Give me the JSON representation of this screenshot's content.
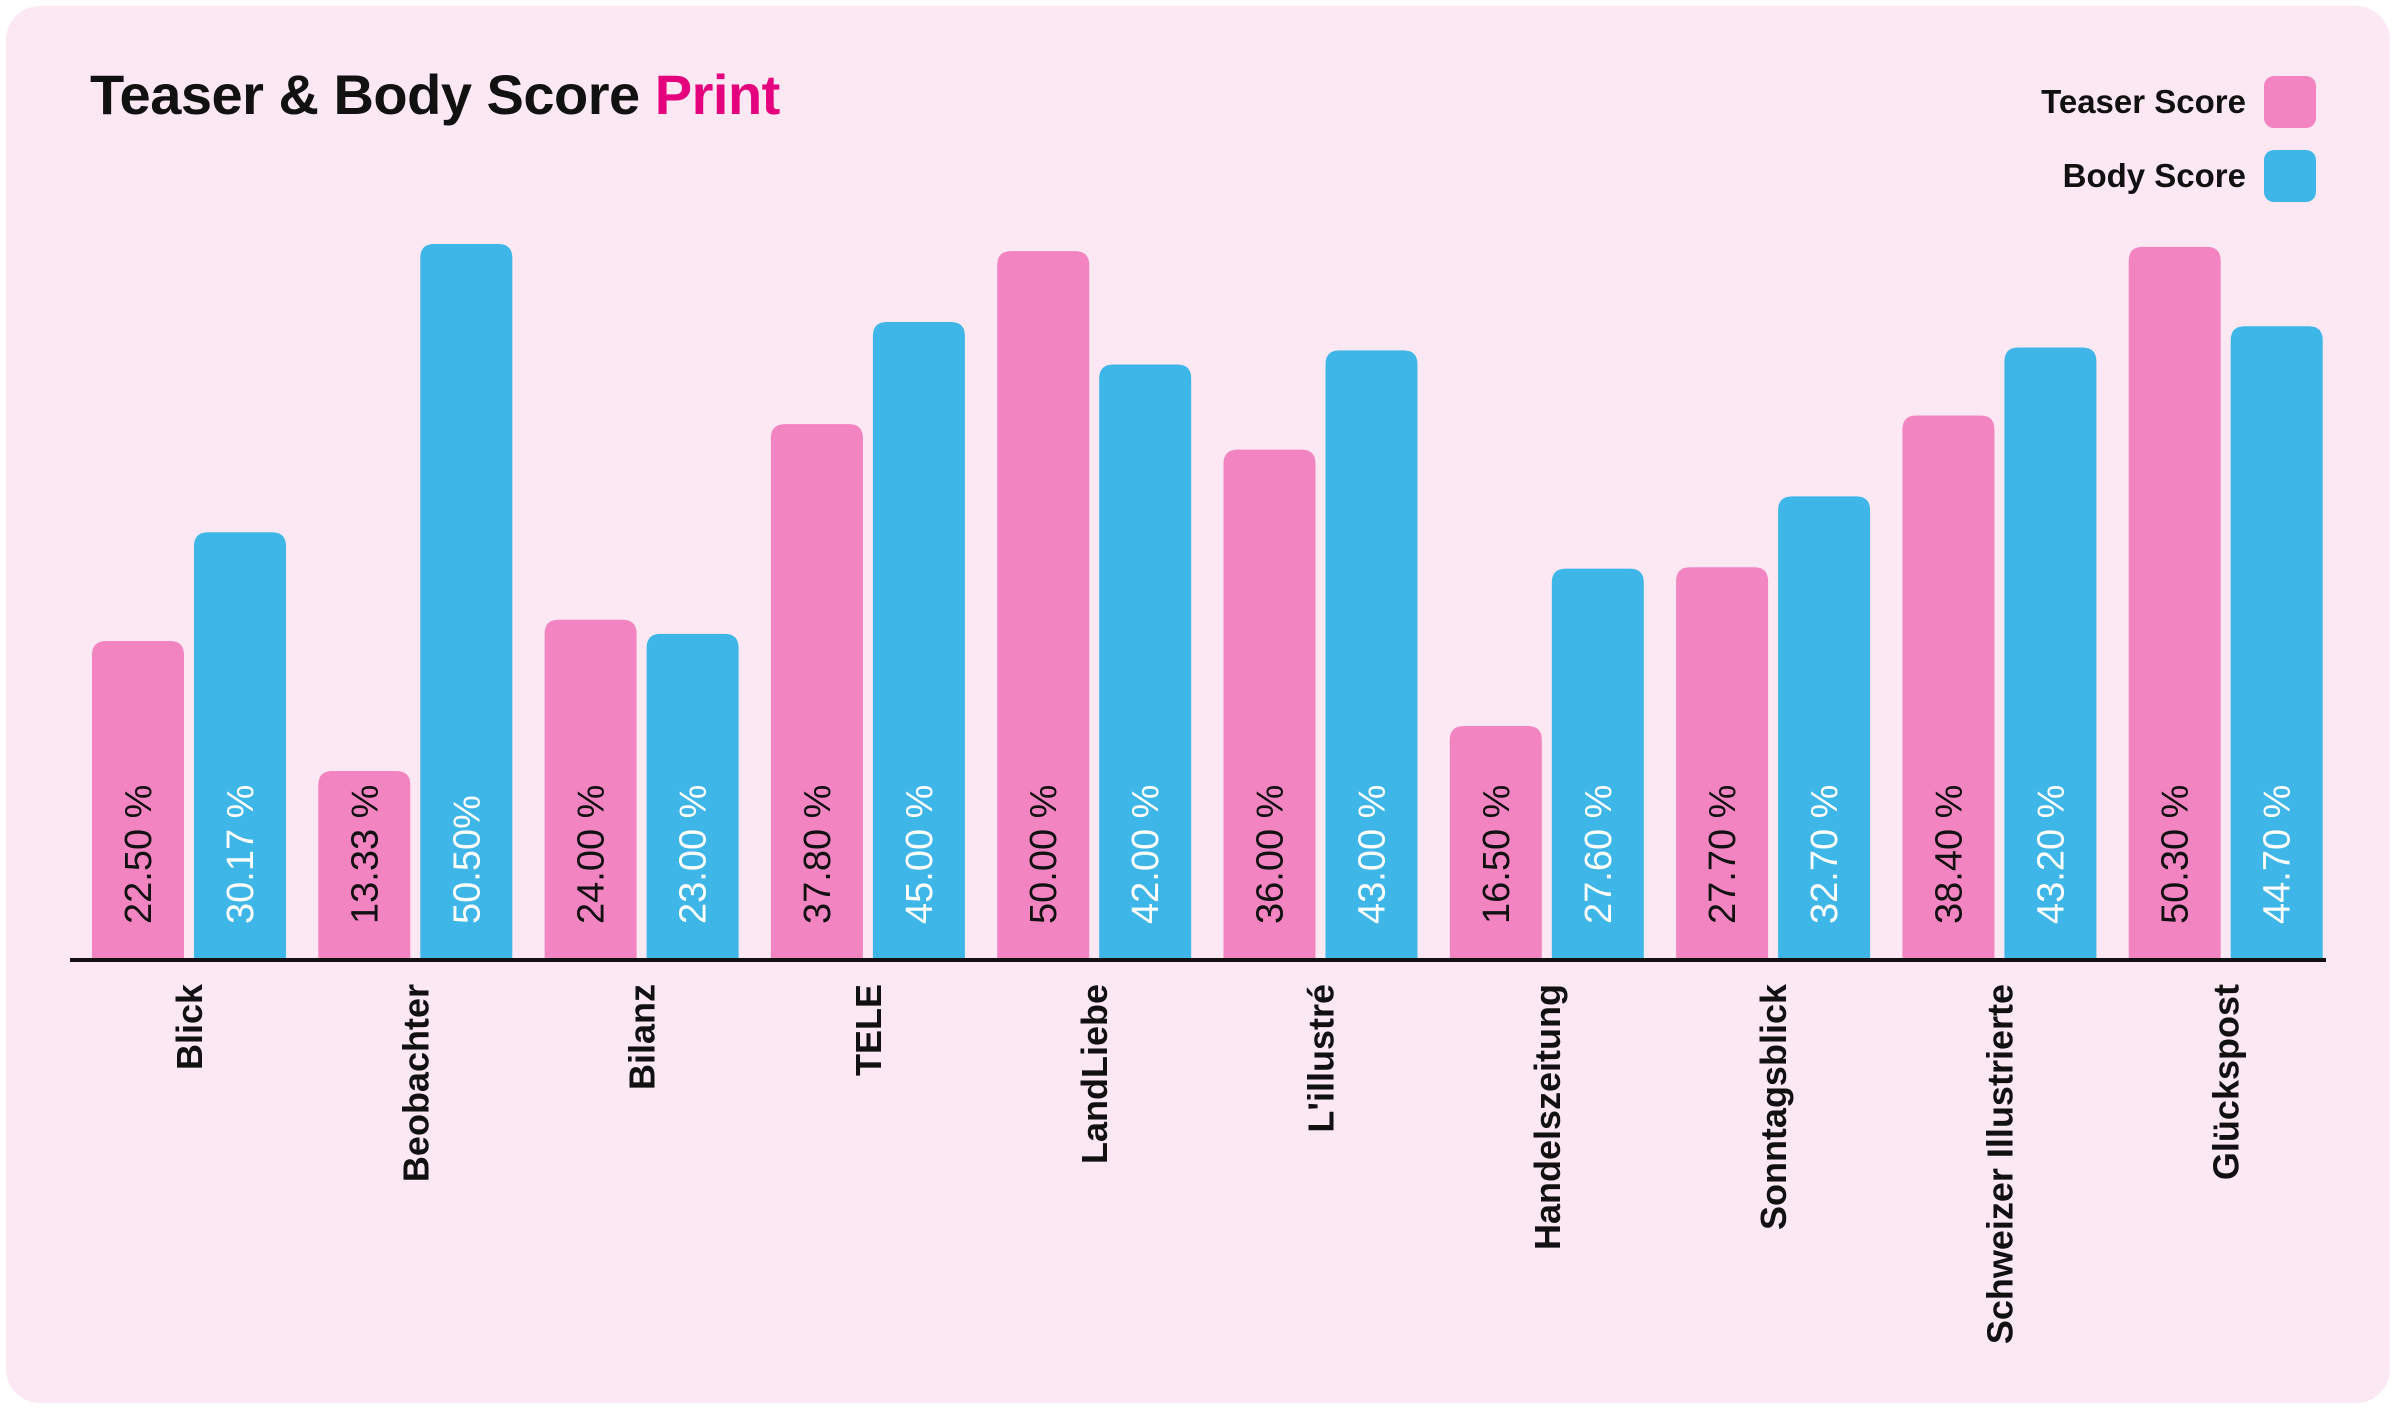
{
  "title": {
    "main": "Teaser & Body Score",
    "accent": "Print"
  },
  "legend": [
    {
      "label": "Teaser Score",
      "color": "#f284c1"
    },
    {
      "label": "Body Score",
      "color": "#3fb6e8"
    }
  ],
  "colors": {
    "background": "#fce8f3",
    "accent": "#e5007d",
    "teaser": "#f284c1",
    "body": "#3fb6e8"
  },
  "chart_data": {
    "type": "bar",
    "title": "Teaser & Body Score Print",
    "categories": [
      "Blick",
      "Beobachter",
      "Bilanz",
      "TELE",
      "LandLiebe",
      "L'illustré",
      "Handelszeitung",
      "Sonntagsblick",
      "Schweizer Illustrierte",
      "Glückspost"
    ],
    "series": [
      {
        "name": "Teaser Score",
        "values": [
          22.5,
          13.33,
          24.0,
          37.8,
          50.0,
          36.0,
          16.5,
          27.7,
          38.4,
          50.3
        ],
        "labels": [
          "22.50 %",
          "13.33 %",
          "24.00 %",
          "37.80 %",
          "50.00 %",
          "36.00 %",
          "16.50 %",
          "27.70 %",
          "38.40 %",
          "50.30 %"
        ],
        "label_color": "#111111"
      },
      {
        "name": "Body Score",
        "values": [
          30.17,
          50.5,
          23.0,
          45.0,
          42.0,
          43.0,
          27.6,
          32.7,
          43.2,
          44.7
        ],
        "labels": [
          "30.17 %",
          "50.50%",
          "23.00 %",
          "45.00 %",
          "42.00 %",
          "43.00 %",
          "27.60 %",
          "32.70 %",
          "43.20 %",
          "44.70 %"
        ],
        "label_color": "#ffffff"
      }
    ],
    "ylim": [
      0,
      50.5
    ],
    "grid": false,
    "legend_position": "top-right"
  }
}
